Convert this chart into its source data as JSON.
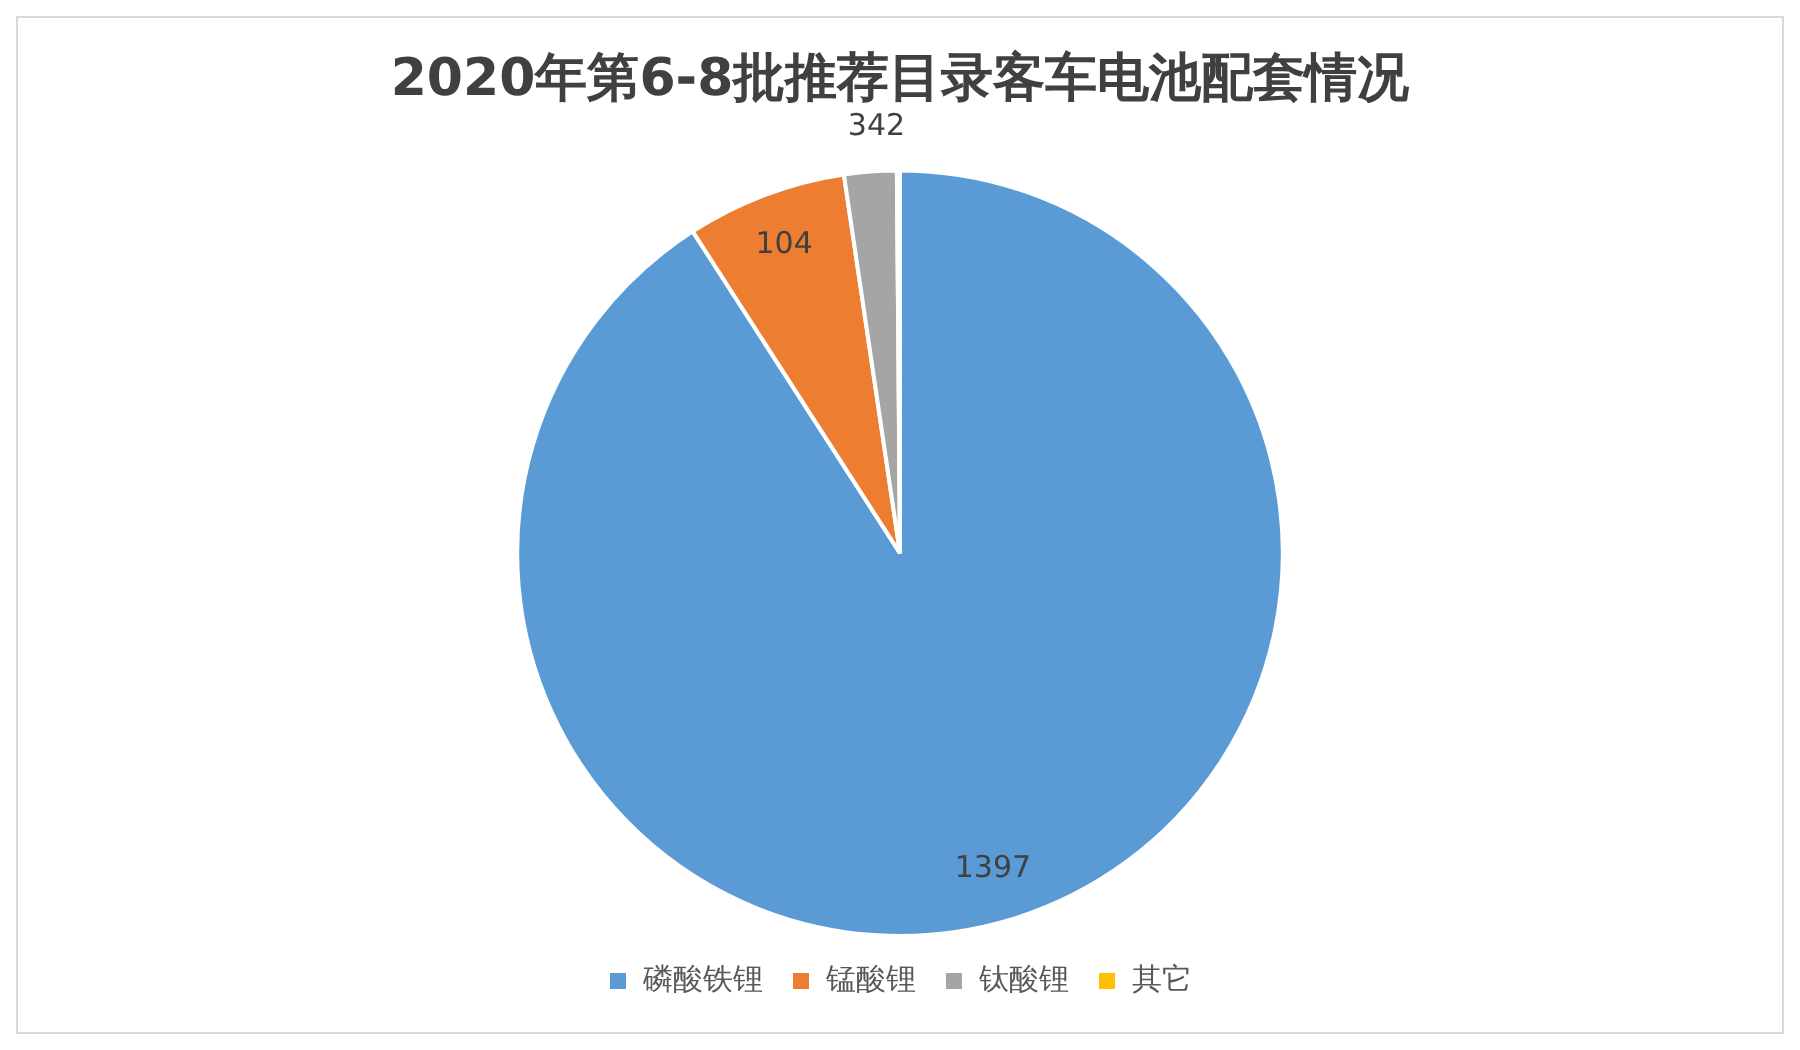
{
  "chart_data": {
    "type": "pie",
    "title": "2020年第6-8批推荐目录客车电池配套情况",
    "categories": [
      "磷酸铁锂",
      "锰酸锂",
      "钛酸锂",
      "其它"
    ],
    "values": [
      1397,
      104,
      34,
      2
    ],
    "colors": [
      "#5b9bd5",
      "#ed7d31",
      "#a5a5a5",
      "#ffc000"
    ],
    "data_labels": true,
    "legend": "bottom"
  }
}
